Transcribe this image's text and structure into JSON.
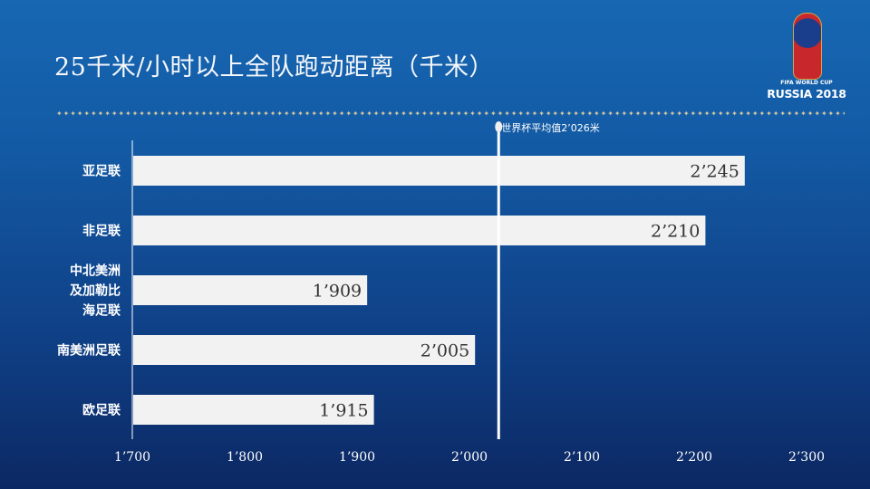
{
  "title": "25千米/小时以上全队跑动距离（千米）",
  "logo": {
    "line1": "FIFA WORLD CUP",
    "line2": "RUSSIA 2018"
  },
  "chart_data": {
    "type": "bar",
    "orientation": "horizontal",
    "title": "25千米/小时以上全队跑动距离（千米）",
    "categories": [
      "亚足联",
      "非足联",
      "中北美洲\n及加勒比\n海足联",
      "南美洲足联",
      "欧足联"
    ],
    "values": [
      2245,
      2210,
      1909,
      2005,
      1915
    ],
    "value_labels": [
      "2’245",
      "2’210",
      "1’909",
      "2’005",
      "1’915"
    ],
    "xlim": [
      1700,
      2300
    ],
    "ticks": [
      1700,
      1800,
      1900,
      2000,
      2100,
      2200,
      2300
    ],
    "tick_labels": [
      "1’700",
      "1’800",
      "1’900",
      "2’000",
      "2’100",
      "2’200",
      "2’300"
    ],
    "reference_line": {
      "value": 2026,
      "label": "世界杯平均值2’026米"
    },
    "grid": false,
    "colors": {
      "bar": "#f2f2f2",
      "label": "#333333",
      "reference": "#ffffff"
    }
  }
}
